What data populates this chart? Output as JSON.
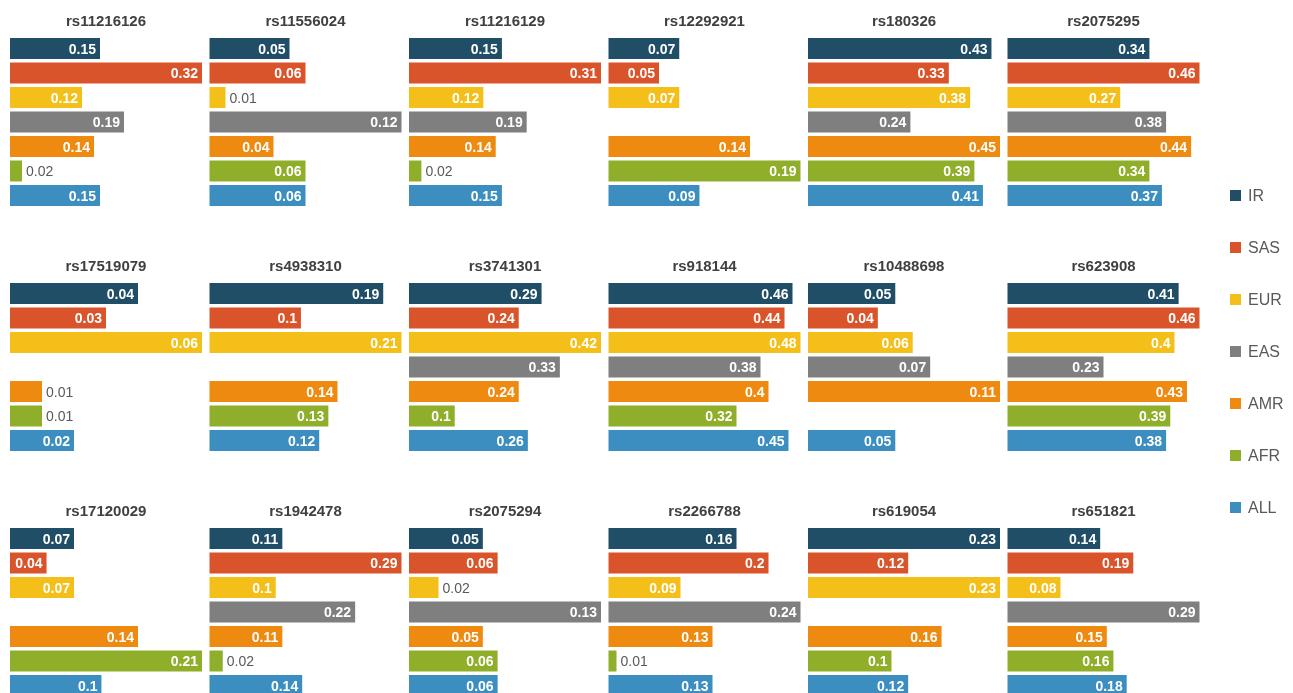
{
  "chart_data": [
    {
      "type": "bar",
      "orientation": "horizontal",
      "title": "rs11216126",
      "categories": [
        null
      ],
      "data_labels": true,
      "legend": "right",
      "series": [
        {
          "name": "IR",
          "color": "#1f4e66",
          "values": [
            0.15
          ]
        },
        {
          "name": "SAS",
          "color": "#d9542b",
          "values": [
            0.32
          ]
        },
        {
          "name": "EUR",
          "color": "#f5bf1a",
          "values": [
            0.12
          ]
        },
        {
          "name": "EAS",
          "color": "#7f7f7f",
          "values": [
            0.19
          ]
        },
        {
          "name": "AMR",
          "color": "#ef8a10",
          "values": [
            0.14
          ]
        },
        {
          "name": "AFR",
          "color": "#8fae2a",
          "values": [
            0.02
          ]
        },
        {
          "name": "ALL",
          "color": "#3d8ec0",
          "values": [
            0.15
          ]
        }
      ]
    },
    {
      "type": "bar",
      "orientation": "horizontal",
      "title": "rs11556024",
      "categories": [
        null
      ],
      "data_labels": true,
      "series": [
        {
          "color": "#1f4e66",
          "values": [
            0.05
          ]
        },
        {
          "color": "#d9542b",
          "values": [
            0.06
          ]
        },
        {
          "color": "#f5bf1a",
          "values": [
            0.01
          ]
        },
        {
          "color": "#7f7f7f",
          "values": [
            0.12
          ]
        },
        {
          "color": "#ef8a10",
          "values": [
            0.04
          ]
        },
        {
          "color": "#8fae2a",
          "values": [
            0.06
          ]
        },
        {
          "color": "#3d8ec0",
          "values": [
            0.06
          ]
        }
      ]
    },
    {
      "type": "bar",
      "orientation": "horizontal",
      "title": "rs11216129",
      "categories": [
        null
      ],
      "data_labels": true,
      "series": [
        {
          "color": "#1f4e66",
          "values": [
            0.15
          ]
        },
        {
          "color": "#d9542b",
          "values": [
            0.31
          ]
        },
        {
          "color": "#f5bf1a",
          "values": [
            0.12
          ]
        },
        {
          "color": "#7f7f7f",
          "values": [
            0.19
          ]
        },
        {
          "color": "#ef8a10",
          "values": [
            0.14
          ]
        },
        {
          "color": "#8fae2a",
          "values": [
            0.02
          ]
        },
        {
          "color": "#3d8ec0",
          "values": [
            0.15
          ]
        }
      ]
    },
    {
      "type": "bar",
      "orientation": "horizontal",
      "title": "rs12292921",
      "categories": [
        null
      ],
      "data_labels": true,
      "series": [
        {
          "color": "#1f4e66",
          "values": [
            0.07
          ]
        },
        {
          "color": "#d9542b",
          "values": [
            0.05
          ]
        },
        {
          "color": "#f5bf1a",
          "values": [
            0.07
          ]
        },
        {
          "values": [
            null
          ]
        },
        {
          "color": "#ef8a10",
          "values": [
            0.14
          ]
        },
        {
          "color": "#8fae2a",
          "values": [
            0.19
          ]
        },
        {
          "color": "#3d8ec0",
          "values": [
            0.09
          ]
        }
      ]
    },
    {
      "type": "bar",
      "orientation": "horizontal",
      "title": "rs180326",
      "categories": [
        null
      ],
      "data_labels": true,
      "series": [
        {
          "color": "#1f4e66",
          "values": [
            0.43
          ]
        },
        {
          "color": "#d9542b",
          "values": [
            0.33
          ]
        },
        {
          "color": "#f5bf1a",
          "values": [
            0.38
          ]
        },
        {
          "color": "#7f7f7f",
          "values": [
            0.24
          ]
        },
        {
          "color": "#ef8a10",
          "values": [
            0.45
          ]
        },
        {
          "color": "#8fae2a",
          "values": [
            0.39
          ]
        },
        {
          "color": "#3d8ec0",
          "values": [
            0.41
          ]
        }
      ]
    },
    {
      "type": "bar",
      "orientation": "horizontal",
      "title": "rs2075295",
      "categories": [
        null
      ],
      "data_labels": true,
      "series": [
        {
          "color": "#1f4e66",
          "values": [
            0.34
          ]
        },
        {
          "color": "#d9542b",
          "values": [
            0.46
          ]
        },
        {
          "color": "#f5bf1a",
          "values": [
            0.27
          ]
        },
        {
          "color": "#7f7f7f",
          "values": [
            0.38
          ]
        },
        {
          "color": "#ef8a10",
          "values": [
            0.44
          ]
        },
        {
          "color": "#8fae2a",
          "values": [
            0.34
          ]
        },
        {
          "color": "#3d8ec0",
          "values": [
            0.37
          ]
        }
      ]
    },
    {
      "type": "bar",
      "orientation": "horizontal",
      "title": "rs17519079",
      "categories": [
        null
      ],
      "data_labels": true,
      "series": [
        {
          "color": "#1f4e66",
          "values": [
            0.04
          ]
        },
        {
          "color": "#d9542b",
          "values": [
            0.03
          ]
        },
        {
          "color": "#f5bf1a",
          "values": [
            0.06
          ]
        },
        {
          "values": [
            null
          ]
        },
        {
          "color": "#ef8a10",
          "values": [
            0.01
          ]
        },
        {
          "color": "#8fae2a",
          "values": [
            0.01
          ]
        },
        {
          "color": "#3d8ec0",
          "values": [
            0.02
          ]
        }
      ]
    },
    {
      "type": "bar",
      "orientation": "horizontal",
      "title": "rs4938310",
      "categories": [
        null
      ],
      "data_labels": true,
      "series": [
        {
          "color": "#1f4e66",
          "values": [
            0.19
          ]
        },
        {
          "color": "#d9542b",
          "values": [
            0.1
          ]
        },
        {
          "color": "#f5bf1a",
          "values": [
            0.21
          ]
        },
        {
          "values": [
            null
          ]
        },
        {
          "color": "#ef8a10",
          "values": [
            0.14
          ]
        },
        {
          "color": "#8fae2a",
          "values": [
            0.13
          ]
        },
        {
          "color": "#3d8ec0",
          "values": [
            0.12
          ]
        }
      ]
    },
    {
      "type": "bar",
      "orientation": "horizontal",
      "title": "rs3741301",
      "categories": [
        null
      ],
      "data_labels": true,
      "series": [
        {
          "color": "#1f4e66",
          "values": [
            0.29
          ]
        },
        {
          "color": "#d9542b",
          "values": [
            0.24
          ]
        },
        {
          "color": "#f5bf1a",
          "values": [
            0.42
          ]
        },
        {
          "color": "#7f7f7f",
          "values": [
            0.33
          ]
        },
        {
          "color": "#ef8a10",
          "values": [
            0.24
          ]
        },
        {
          "color": "#8fae2a",
          "values": [
            0.1
          ]
        },
        {
          "color": "#3d8ec0",
          "values": [
            0.26
          ]
        }
      ]
    },
    {
      "type": "bar",
      "orientation": "horizontal",
      "title": "rs918144",
      "categories": [
        null
      ],
      "data_labels": true,
      "series": [
        {
          "color": "#1f4e66",
          "values": [
            0.46
          ]
        },
        {
          "color": "#d9542b",
          "values": [
            0.44
          ]
        },
        {
          "color": "#f5bf1a",
          "values": [
            0.48
          ]
        },
        {
          "color": "#7f7f7f",
          "values": [
            0.38
          ]
        },
        {
          "color": "#ef8a10",
          "values": [
            0.4
          ]
        },
        {
          "color": "#8fae2a",
          "values": [
            0.32
          ]
        },
        {
          "color": "#3d8ec0",
          "values": [
            0.45
          ]
        }
      ]
    },
    {
      "type": "bar",
      "orientation": "horizontal",
      "title": "rs10488698",
      "categories": [
        null
      ],
      "data_labels": true,
      "series": [
        {
          "color": "#1f4e66",
          "values": [
            0.05
          ]
        },
        {
          "color": "#d9542b",
          "values": [
            0.04
          ]
        },
        {
          "color": "#f5bf1a",
          "values": [
            0.06
          ]
        },
        {
          "color": "#7f7f7f",
          "values": [
            0.07
          ]
        },
        {
          "color": "#ef8a10",
          "values": [
            0.11
          ]
        },
        {
          "values": [
            null
          ]
        },
        {
          "color": "#3d8ec0",
          "values": [
            0.05
          ]
        }
      ]
    },
    {
      "type": "bar",
      "orientation": "horizontal",
      "title": "rs623908",
      "categories": [
        null
      ],
      "data_labels": true,
      "series": [
        {
          "color": "#1f4e66",
          "values": [
            0.41
          ]
        },
        {
          "color": "#d9542b",
          "values": [
            0.46
          ]
        },
        {
          "color": "#f5bf1a",
          "values": [
            0.4
          ]
        },
        {
          "color": "#7f7f7f",
          "values": [
            0.23
          ]
        },
        {
          "color": "#ef8a10",
          "values": [
            0.43
          ]
        },
        {
          "color": "#8fae2a",
          "values": [
            0.39
          ]
        },
        {
          "color": "#3d8ec0",
          "values": [
            0.38
          ]
        }
      ]
    },
    {
      "type": "bar",
      "orientation": "horizontal",
      "title": "rs17120029",
      "categories": [
        null
      ],
      "data_labels": true,
      "series": [
        {
          "color": "#1f4e66",
          "values": [
            0.07
          ]
        },
        {
          "color": "#d9542b",
          "values": [
            0.04
          ]
        },
        {
          "color": "#f5bf1a",
          "values": [
            0.07
          ]
        },
        {
          "values": [
            null
          ]
        },
        {
          "color": "#ef8a10",
          "values": [
            0.14
          ]
        },
        {
          "color": "#8fae2a",
          "values": [
            0.21
          ]
        },
        {
          "color": "#3d8ec0",
          "values": [
            0.1
          ]
        }
      ]
    },
    {
      "type": "bar",
      "orientation": "horizontal",
      "title": "rs1942478",
      "categories": [
        null
      ],
      "data_labels": true,
      "series": [
        {
          "color": "#1f4e66",
          "values": [
            0.11
          ]
        },
        {
          "color": "#d9542b",
          "values": [
            0.29
          ]
        },
        {
          "color": "#f5bf1a",
          "values": [
            0.1
          ]
        },
        {
          "color": "#7f7f7f",
          "values": [
            0.22
          ]
        },
        {
          "color": "#ef8a10",
          "values": [
            0.11
          ]
        },
        {
          "color": "#8fae2a",
          "values": [
            0.02
          ]
        },
        {
          "color": "#3d8ec0",
          "values": [
            0.14
          ]
        }
      ]
    },
    {
      "type": "bar",
      "orientation": "horizontal",
      "title": "rs2075294",
      "categories": [
        null
      ],
      "data_labels": true,
      "series": [
        {
          "color": "#1f4e66",
          "values": [
            0.05
          ]
        },
        {
          "color": "#d9542b",
          "values": [
            0.06
          ]
        },
        {
          "color": "#f5bf1a",
          "values": [
            0.02
          ]
        },
        {
          "color": "#7f7f7f",
          "values": [
            0.13
          ]
        },
        {
          "color": "#ef8a10",
          "values": [
            0.05
          ]
        },
        {
          "color": "#8fae2a",
          "values": [
            0.06
          ]
        },
        {
          "color": "#3d8ec0",
          "values": [
            0.06
          ]
        }
      ]
    },
    {
      "type": "bar",
      "orientation": "horizontal",
      "title": "rs2266788",
      "categories": [
        null
      ],
      "data_labels": true,
      "series": [
        {
          "color": "#1f4e66",
          "values": [
            0.16
          ]
        },
        {
          "color": "#d9542b",
          "values": [
            0.2
          ]
        },
        {
          "color": "#f5bf1a",
          "values": [
            0.09
          ]
        },
        {
          "color": "#7f7f7f",
          "values": [
            0.24
          ]
        },
        {
          "color": "#ef8a10",
          "values": [
            0.13
          ]
        },
        {
          "color": "#8fae2a",
          "values": [
            0.01
          ]
        },
        {
          "color": "#3d8ec0",
          "values": [
            0.13
          ]
        }
      ]
    },
    {
      "type": "bar",
      "orientation": "horizontal",
      "title": "rs619054",
      "categories": [
        null
      ],
      "data_labels": true,
      "series": [
        {
          "color": "#1f4e66",
          "values": [
            0.23
          ]
        },
        {
          "color": "#d9542b",
          "values": [
            0.12
          ]
        },
        {
          "color": "#f5bf1a",
          "values": [
            0.23
          ]
        },
        {
          "values": [
            null
          ]
        },
        {
          "color": "#ef8a10",
          "values": [
            0.16
          ]
        },
        {
          "color": "#8fae2a",
          "values": [
            0.1
          ]
        },
        {
          "color": "#3d8ec0",
          "values": [
            0.12
          ]
        }
      ]
    },
    {
      "type": "bar",
      "orientation": "horizontal",
      "title": "rs651821",
      "categories": [
        null
      ],
      "data_labels": true,
      "series": [
        {
          "color": "#1f4e66",
          "values": [
            0.14
          ]
        },
        {
          "color": "#d9542b",
          "values": [
            0.19
          ]
        },
        {
          "color": "#f5bf1a",
          "values": [
            0.08
          ]
        },
        {
          "color": "#7f7f7f",
          "values": [
            0.29
          ]
        },
        {
          "color": "#ef8a10",
          "values": [
            0.15
          ]
        },
        {
          "color": "#8fae2a",
          "values": [
            0.16
          ]
        },
        {
          "color": "#3d8ec0",
          "values": [
            0.18
          ]
        }
      ]
    }
  ]
}
